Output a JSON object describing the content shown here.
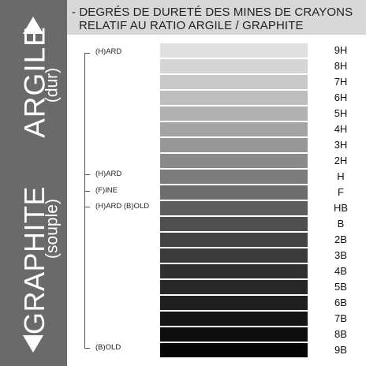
{
  "title": {
    "line1": "- DEGRÉS DE DURETÉ DES MINES DE CRAYONS",
    "line2": "RELATIF AU RATIO ARGILE / GRAPHITE"
  },
  "side": {
    "argile": "ARGILE",
    "argile_sub": "(dur)",
    "graphite": "GRAPHITE",
    "graphite_sub": "(souple)",
    "up_icon": "arrow-up",
    "down_icon": "arrow-down"
  },
  "labels": [
    "(H)ARD",
    "(H)ARD",
    "(F)INE",
    "(H)ARD (B)OLD",
    "(B)OLD"
  ],
  "grades": [
    {
      "name": "9H",
      "color": "#e0e0e0"
    },
    {
      "name": "8H",
      "color": "#d5d5d5"
    },
    {
      "name": "7H",
      "color": "#c9c9c9"
    },
    {
      "name": "6H",
      "color": "#bdbdbd"
    },
    {
      "name": "5H",
      "color": "#b1b1b1"
    },
    {
      "name": "4H",
      "color": "#a4a4a4"
    },
    {
      "name": "3H",
      "color": "#979797"
    },
    {
      "name": "2H",
      "color": "#8a8a8a"
    },
    {
      "name": "H",
      "color": "#7c7c7c"
    },
    {
      "name": "F",
      "color": "#6d6d6d"
    },
    {
      "name": "HB",
      "color": "#5e5e5e"
    },
    {
      "name": "B",
      "color": "#4f4f4f"
    },
    {
      "name": "2B",
      "color": "#444444"
    },
    {
      "name": "3B",
      "color": "#3a3a3a"
    },
    {
      "name": "4B",
      "color": "#303030"
    },
    {
      "name": "5B",
      "color": "#272727"
    },
    {
      "name": "6B",
      "color": "#1e1e1e"
    },
    {
      "name": "7B",
      "color": "#161616"
    },
    {
      "name": "8B",
      "color": "#0e0e0e"
    },
    {
      "name": "9B",
      "color": "#050505"
    }
  ]
}
